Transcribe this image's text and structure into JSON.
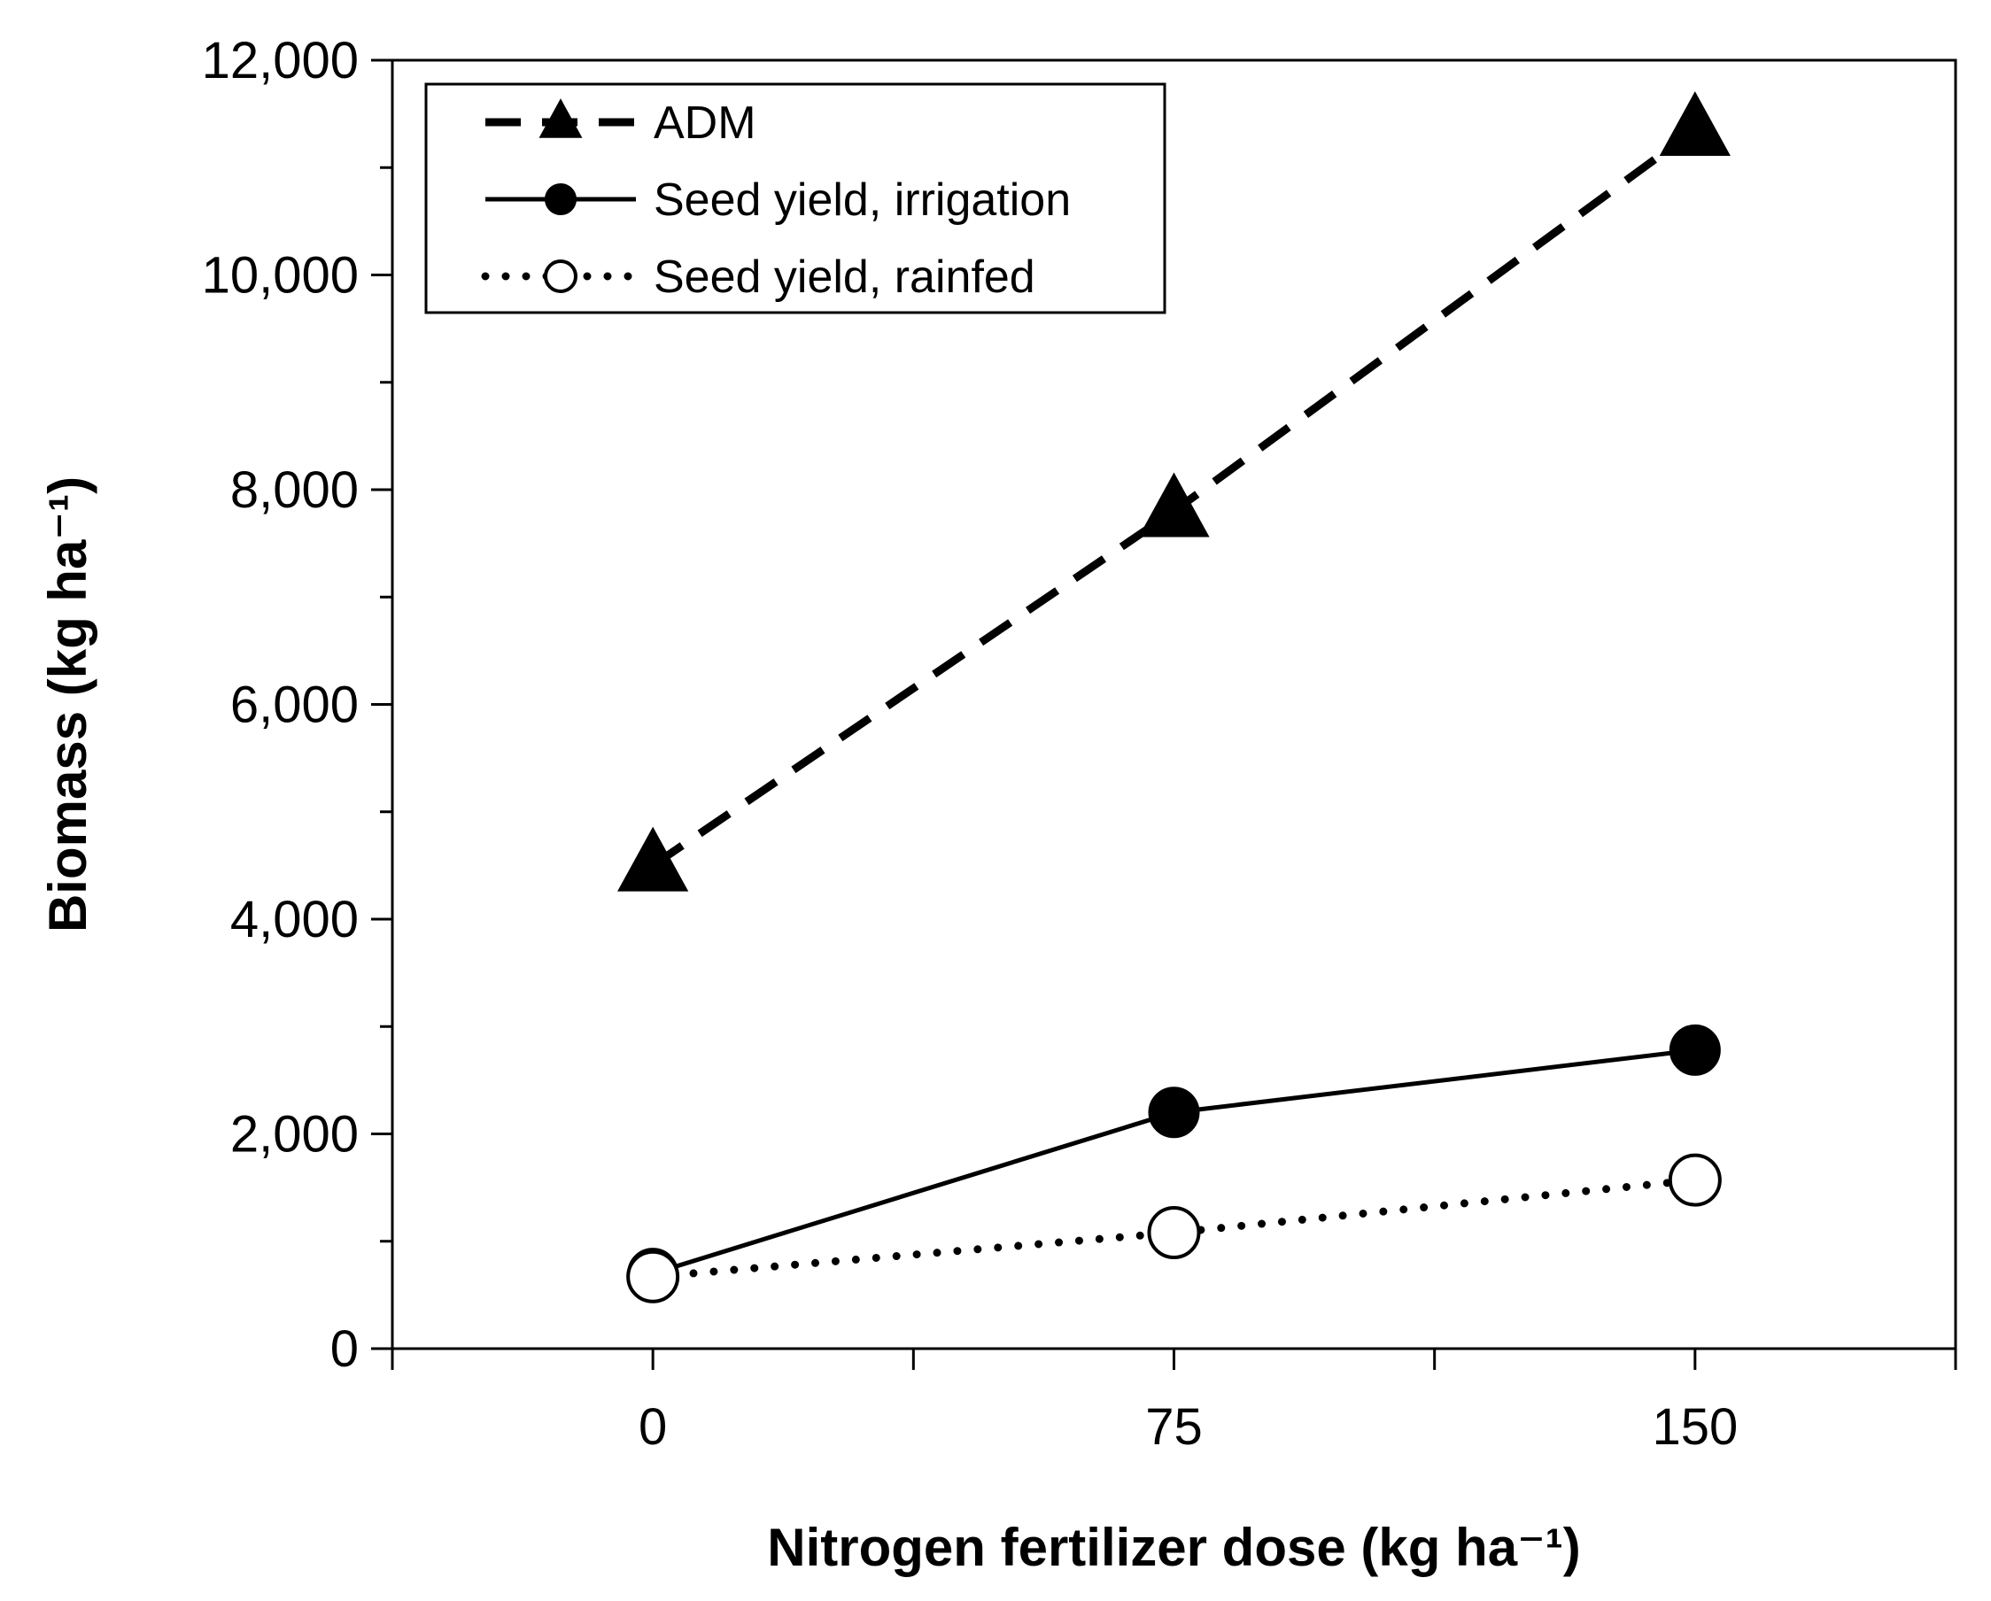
{
  "chart_data": {
    "type": "line",
    "title": "",
    "xlabel": "Nitrogen fertilizer dose (kg ha⁻¹)",
    "ylabel": "Biomass (kg ha⁻¹)",
    "categories": [
      "0",
      "75",
      "150"
    ],
    "xlim": [
      -37.5,
      187.5
    ],
    "ylim": [
      0,
      12000
    ],
    "yticks": [
      0,
      2000,
      4000,
      6000,
      8000,
      10000,
      12000
    ],
    "ytick_labels": [
      "0",
      "2,000",
      "4,000",
      "6,000",
      "8,000",
      "10,000",
      "12,000"
    ],
    "grid": false,
    "legend_position": "top-left",
    "series": [
      {
        "name": "ADM",
        "x": [
          0,
          75,
          150
        ],
        "values": [
          4500,
          7800,
          11350
        ],
        "line": "dashed",
        "marker": "filled-triangle",
        "color": "#000000"
      },
      {
        "name": "Seed yield, irrigation",
        "x": [
          0,
          75,
          150
        ],
        "values": [
          700,
          2200,
          2780
        ],
        "line": "solid",
        "marker": "filled-circle",
        "color": "#000000"
      },
      {
        "name": "Seed yield, rainfed",
        "x": [
          0,
          75,
          150
        ],
        "values": [
          670,
          1080,
          1570
        ],
        "line": "dotted",
        "marker": "open-circle",
        "color": "#000000"
      }
    ]
  }
}
